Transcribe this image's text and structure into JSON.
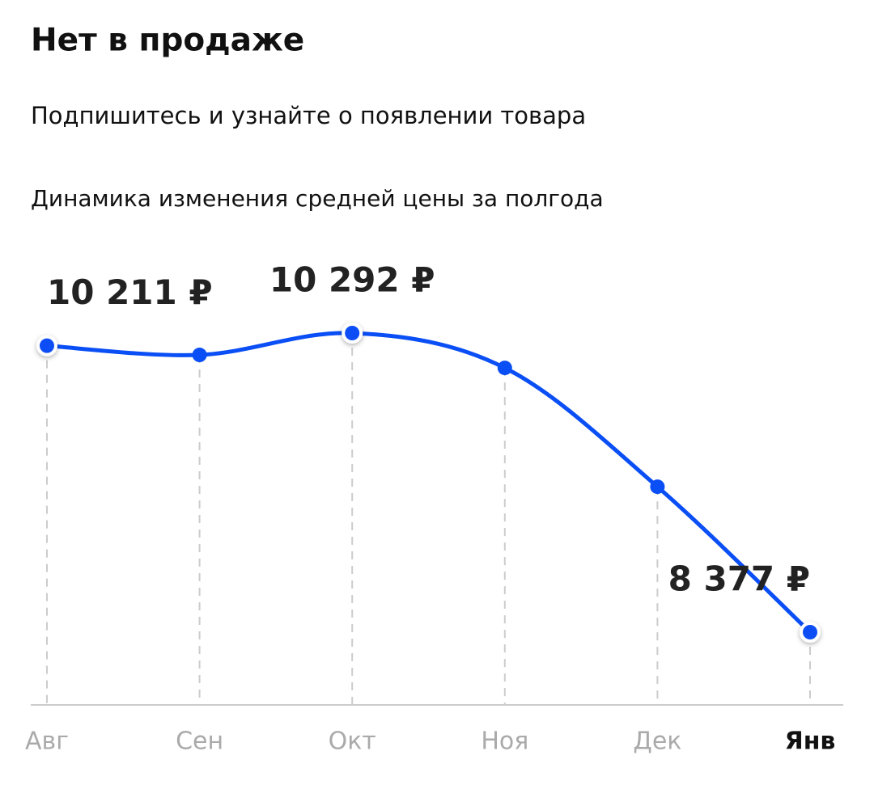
{
  "header": {
    "title": "Нет в продаже",
    "subtitle": "Подпишитесь и узнайте о появлении товара"
  },
  "chart_data": {
    "type": "line",
    "title": "Динамика изменения средней цены за полгода",
    "categories": [
      "Авг",
      "Сен",
      "Окт",
      "Ноя",
      "Дек",
      "Янв"
    ],
    "series": [
      {
        "name": null,
        "color": "#0a4ef5",
        "values": [
          10211,
          10152,
          10292,
          10069,
          9308,
          8377
        ],
        "value_labels": [
          "10 211 ₽",
          null,
          "10 292 ₽",
          null,
          null,
          "8 377 ₽"
        ]
      }
    ]
  }
}
